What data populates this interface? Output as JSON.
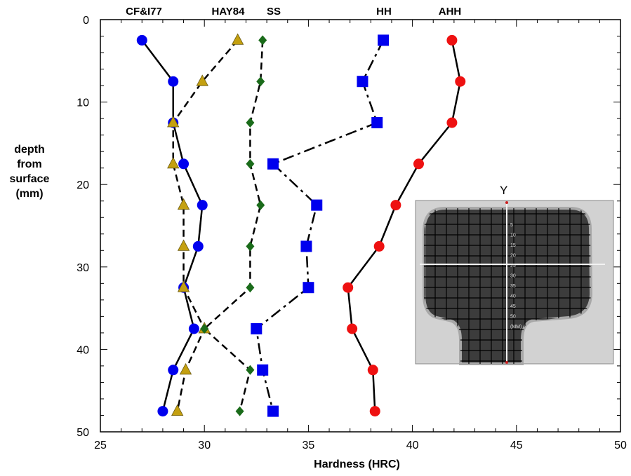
{
  "chart_data": {
    "type": "scatter",
    "title": "",
    "xlabel": "Hardness (HRC)",
    "ylabel_lines": [
      "depth",
      "from",
      "surface",
      "(mm)"
    ],
    "xlim": [
      25,
      50
    ],
    "ylim": [
      0,
      50
    ],
    "y_inverted": true,
    "xticks": [
      25,
      30,
      35,
      40,
      45,
      50
    ],
    "yticks": [
      0,
      10,
      20,
      30,
      40,
      50
    ],
    "grid": false,
    "series": [
      {
        "name": "CF&I77",
        "marker": "circle",
        "color": "#0000ee",
        "line": "solid",
        "points": [
          {
            "x": 27.0,
            "y": 2.5
          },
          {
            "x": 28.5,
            "y": 7.5
          },
          {
            "x": 28.5,
            "y": 12.5
          },
          {
            "x": 29.0,
            "y": 17.5
          },
          {
            "x": 29.9,
            "y": 22.5
          },
          {
            "x": 29.7,
            "y": 27.5
          },
          {
            "x": 29.0,
            "y": 32.5
          },
          {
            "x": 29.5,
            "y": 37.5
          },
          {
            "x": 28.5,
            "y": 42.5
          },
          {
            "x": 28.0,
            "y": 47.5
          }
        ]
      },
      {
        "name": "HAY84",
        "marker": "triangle",
        "color": "#c4a010",
        "line": "dashed",
        "points": [
          {
            "x": 31.6,
            "y": 2.5
          },
          {
            "x": 29.9,
            "y": 7.5
          },
          {
            "x": 28.5,
            "y": 12.5
          },
          {
            "x": 28.5,
            "y": 17.5
          },
          {
            "x": 29.0,
            "y": 22.5
          },
          {
            "x": 29.0,
            "y": 27.5
          },
          {
            "x": 29.0,
            "y": 32.5
          },
          {
            "x": 30.0,
            "y": 37.5
          },
          {
            "x": 29.1,
            "y": 42.5
          },
          {
            "x": 28.7,
            "y": 47.5
          }
        ]
      },
      {
        "name": "SS",
        "marker": "diamond",
        "color": "#1a6b1a",
        "line": "dashed",
        "points": [
          {
            "x": 32.8,
            "y": 2.5
          },
          {
            "x": 32.7,
            "y": 7.5
          },
          {
            "x": 32.2,
            "y": 12.5
          },
          {
            "x": 32.2,
            "y": 17.5
          },
          {
            "x": 32.7,
            "y": 22.5
          },
          {
            "x": 32.2,
            "y": 27.5
          },
          {
            "x": 32.2,
            "y": 32.5
          },
          {
            "x": 30.0,
            "y": 37.5
          },
          {
            "x": 32.2,
            "y": 42.5
          },
          {
            "x": 31.7,
            "y": 47.5
          }
        ]
      },
      {
        "name": "HH",
        "marker": "square",
        "color": "#0000ee",
        "line": "dashdot",
        "points": [
          {
            "x": 38.6,
            "y": 2.5
          },
          {
            "x": 37.6,
            "y": 7.5
          },
          {
            "x": 38.3,
            "y": 12.5
          },
          {
            "x": 33.3,
            "y": 17.5
          },
          {
            "x": 35.4,
            "y": 22.5
          },
          {
            "x": 34.9,
            "y": 27.5
          },
          {
            "x": 35.0,
            "y": 32.5
          },
          {
            "x": 32.5,
            "y": 37.5
          },
          {
            "x": 32.8,
            "y": 42.5
          },
          {
            "x": 33.3,
            "y": 47.5
          }
        ]
      },
      {
        "name": "AHH",
        "marker": "circle",
        "color": "#ee1111",
        "line": "solid",
        "points": [
          {
            "x": 41.9,
            "y": 2.5
          },
          {
            "x": 42.3,
            "y": 7.5
          },
          {
            "x": 41.9,
            "y": 12.5
          },
          {
            "x": 40.3,
            "y": 17.5
          },
          {
            "x": 39.2,
            "y": 22.5
          },
          {
            "x": 38.4,
            "y": 27.5
          },
          {
            "x": 36.9,
            "y": 32.5
          },
          {
            "x": 37.1,
            "y": 37.5
          },
          {
            "x": 38.1,
            "y": 42.5
          },
          {
            "x": 38.2,
            "y": 47.5
          }
        ]
      }
    ],
    "inset": {
      "label": "Y",
      "scale_ticks": [
        "5",
        "10",
        "15",
        "20",
        "25",
        "30",
        "35",
        "40",
        "45",
        "50",
        "(MM)"
      ]
    }
  }
}
